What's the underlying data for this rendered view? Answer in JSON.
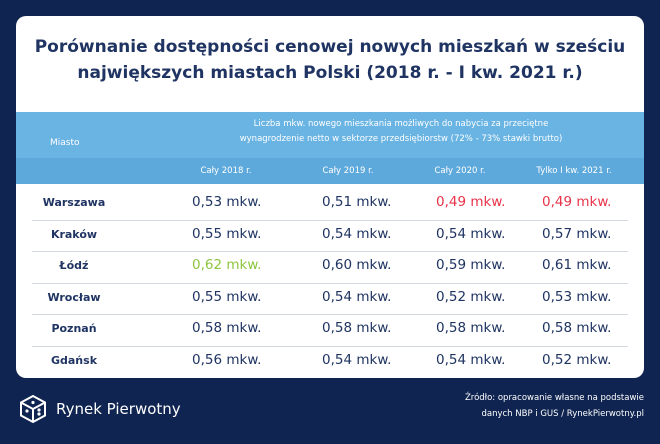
{
  "title_line1": "Porównanie dostępności cenowej nowych mieszkań w sześciu",
  "title_line2": "największych miastach Polski (2018 r. - I kw. 2021 r.)",
  "header": {
    "city_label": "Miasto",
    "description_line1": "Liczba mkw. nowego mieszkania możliwych do nabycia za przeciętne",
    "description_line2": "wynagrodzenie netto w sektorze przedsiębiorstw (72% - 73% stawki brutto)",
    "columns": [
      "Cały 2018 r.",
      "Cały 2019 r.",
      "Cały 2020 r.",
      "Tylko I kw. 2021 r."
    ]
  },
  "rows": [
    {
      "city": "Warszawa",
      "values": [
        "0,53 mkw.",
        "0,51 mkw.",
        "0,49 mkw.",
        "0,49 mkw."
      ],
      "highlight": [
        "",
        "",
        "red",
        "red"
      ]
    },
    {
      "city": "Kraków",
      "values": [
        "0,55 mkw.",
        "0,54 mkw.",
        "0,54 mkw.",
        "0,57 mkw."
      ],
      "highlight": [
        "",
        "",
        "",
        ""
      ]
    },
    {
      "city": "Łódź",
      "values": [
        "0,62 mkw.",
        "0,60 mkw.",
        "0,59 mkw.",
        "0,61 mkw."
      ],
      "highlight": [
        "green",
        "",
        "",
        ""
      ]
    },
    {
      "city": "Wrocław",
      "values": [
        "0,55 mkw.",
        "0,54 mkw.",
        "0,52 mkw.",
        "0,53 mkw."
      ],
      "highlight": [
        "",
        "",
        "",
        ""
      ]
    },
    {
      "city": "Poznań",
      "values": [
        "0,58 mkw.",
        "0,58 mkw.",
        "0,58 mkw.",
        "0,58 mkw."
      ],
      "highlight": [
        "",
        "",
        "",
        ""
      ]
    },
    {
      "city": "Gdańsk",
      "values": [
        "0,56 mkw.",
        "0,54 mkw.",
        "0,54 mkw.",
        "0,52 mkw."
      ],
      "highlight": [
        "",
        "",
        "",
        ""
      ]
    }
  ],
  "brand": {
    "name": "Rynek Pierwotny",
    "icon": "cube-logo-icon"
  },
  "source_line1": "Źródło: opracowanie własne na podstawie",
  "source_line2": "danych NBP i GUS / RynekPierwotny.pl",
  "colors": {
    "background": "#0f2450",
    "text": "#1f3462",
    "header_blue": "#6ab4e4",
    "red": "#e8334a",
    "green": "#8cc63f"
  }
}
